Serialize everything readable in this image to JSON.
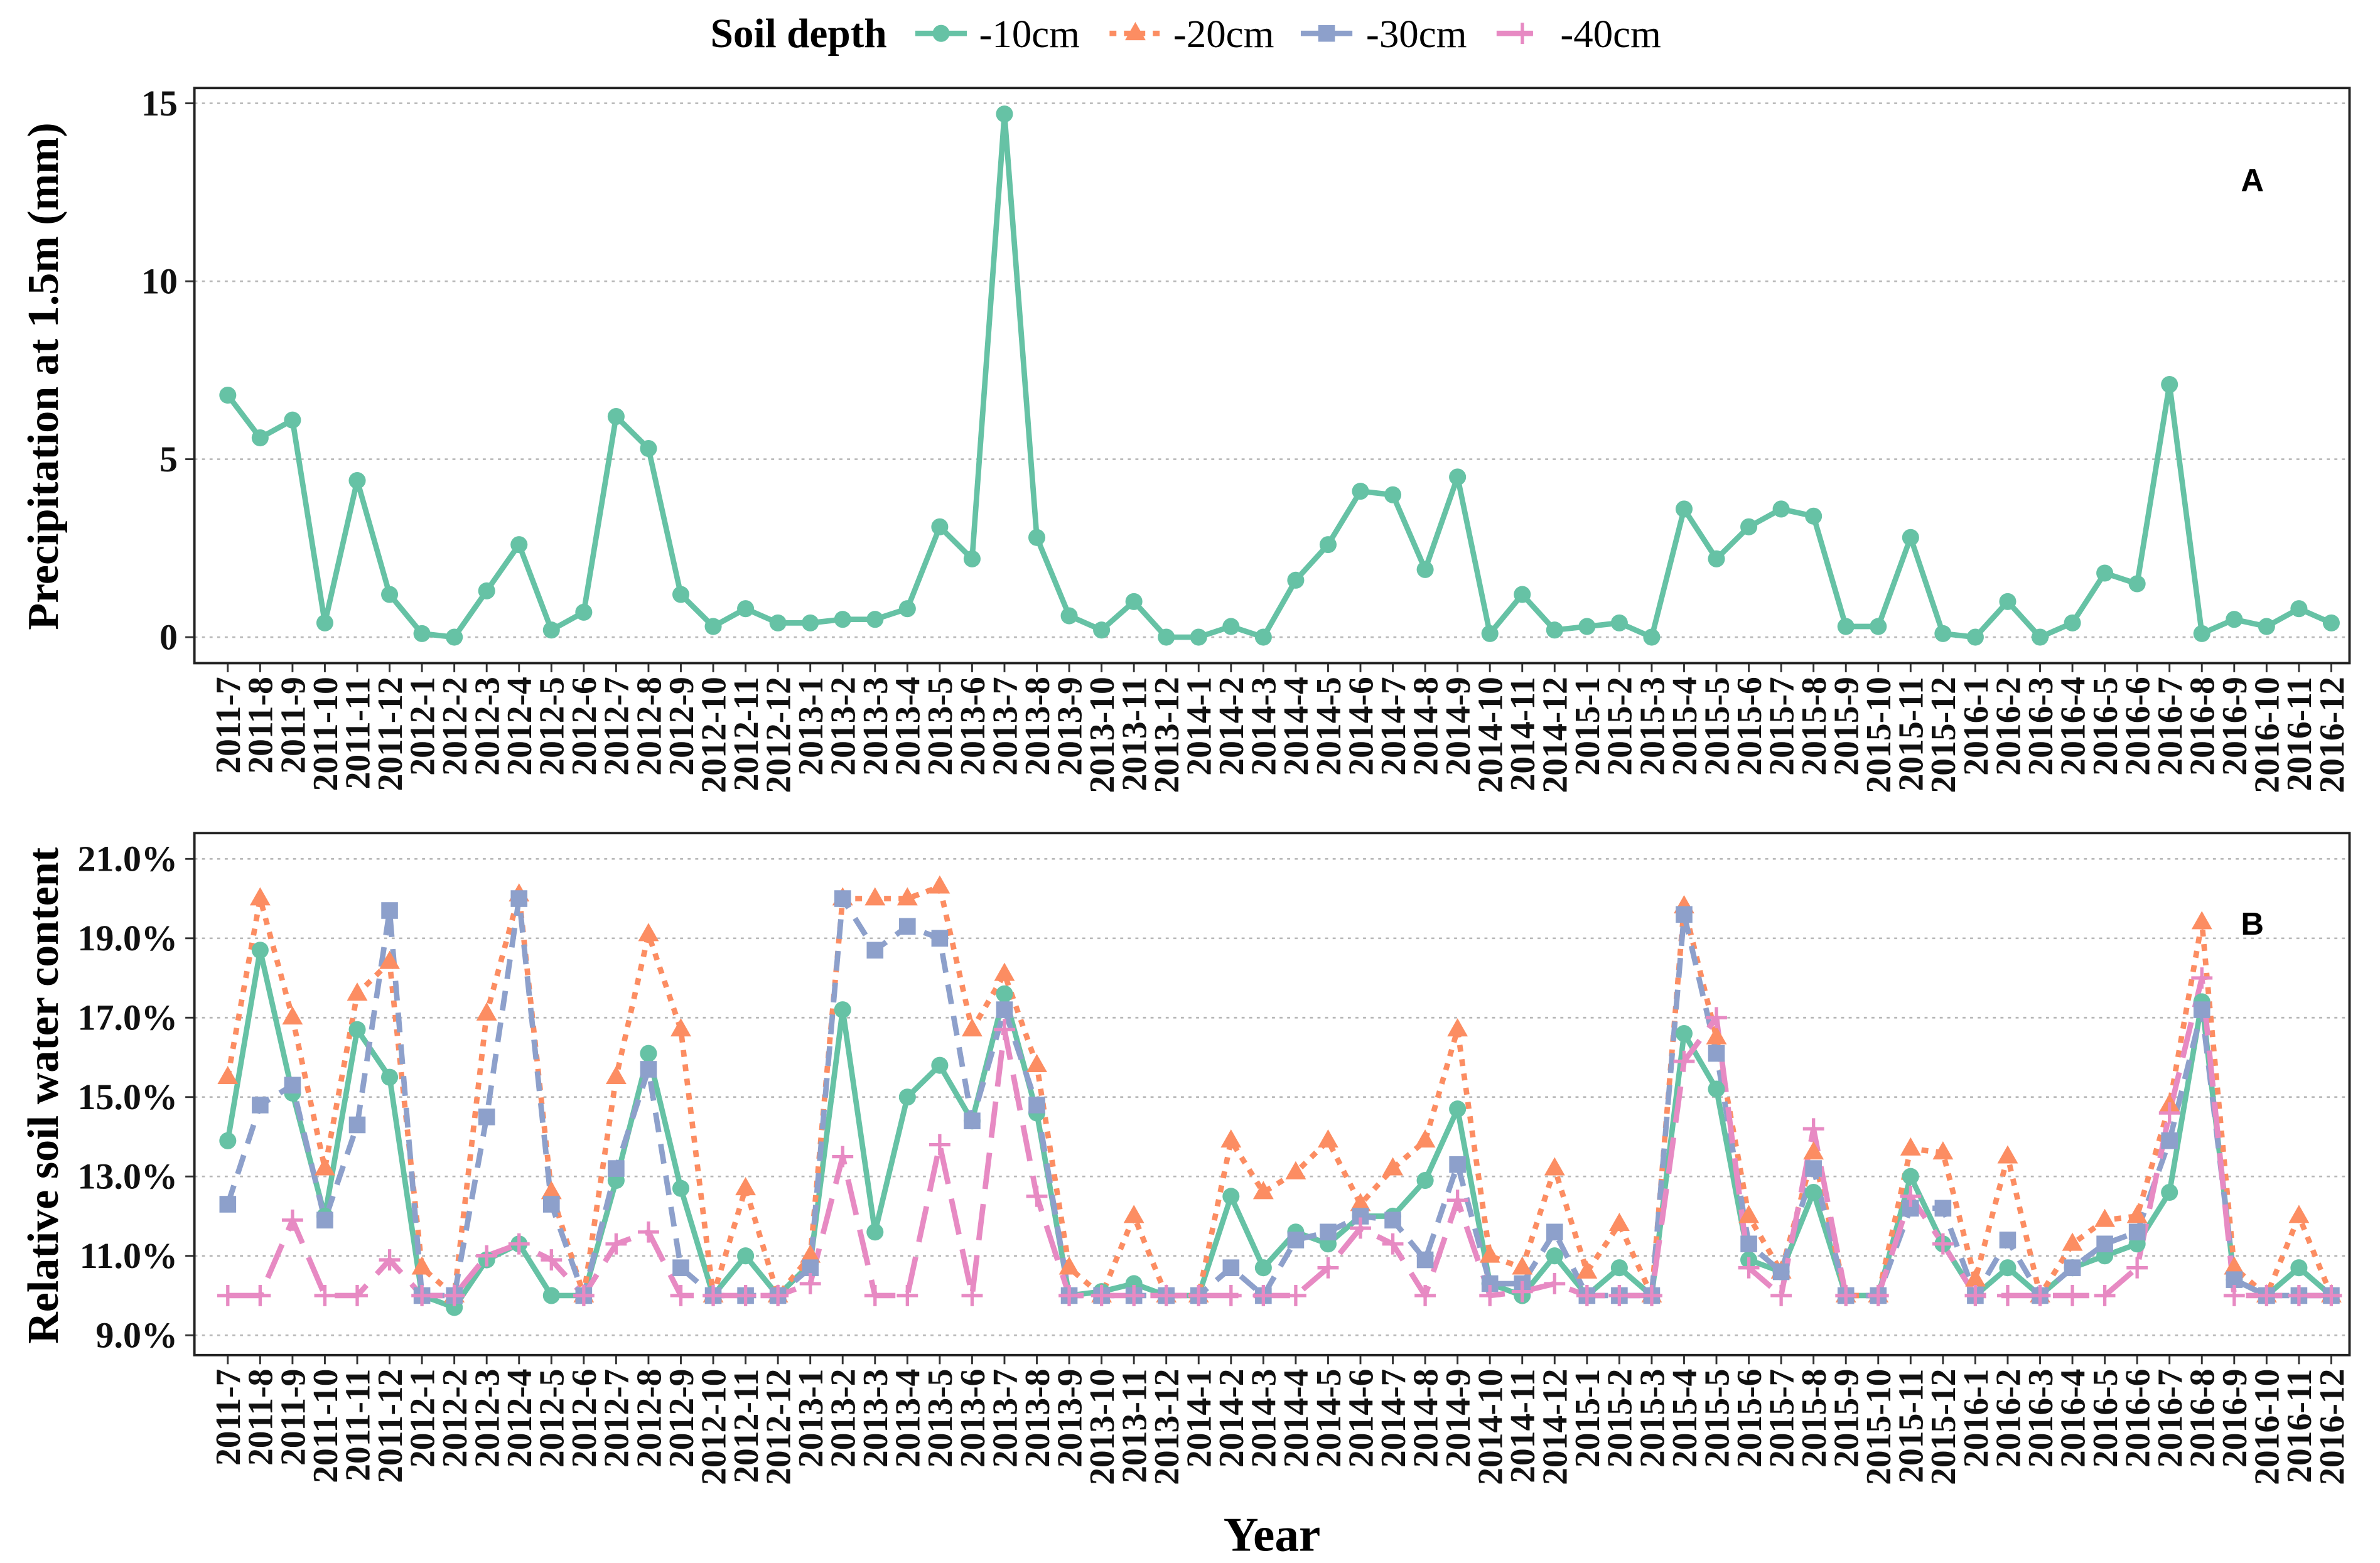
{
  "legend": {
    "title": "Soil depth",
    "position": "top"
  },
  "chart_data": [
    {
      "type": "line",
      "panel_label": "A",
      "ylabel": "Precipitation at 1.5m (mm)",
      "ylim": [
        -0.73,
        15.43
      ],
      "yticks": [
        0,
        5,
        10,
        15
      ],
      "ytick_labels": [
        "0",
        "5",
        "10",
        "15"
      ],
      "grid": true,
      "categories": [
        "2011-7",
        "2011-8",
        "2011-9",
        "2011-10",
        "2011-11",
        "2011-12",
        "2012-1",
        "2012-2",
        "2012-3",
        "2012-4",
        "2012-5",
        "2012-6",
        "2012-7",
        "2012-8",
        "2012-9",
        "2012-10",
        "2012-11",
        "2012-12",
        "2013-1",
        "2013-2",
        "2013-3",
        "2013-4",
        "2013-5",
        "2013-6",
        "2013-7",
        "2013-8",
        "2013-9",
        "2013-10",
        "2013-11",
        "2013-12",
        "2014-1",
        "2014-2",
        "2014-3",
        "2014-4",
        "2014-5",
        "2014-6",
        "2014-7",
        "2014-8",
        "2014-9",
        "2014-10",
        "2014-11",
        "2014-12",
        "2015-1",
        "2015-2",
        "2015-3",
        "2015-4",
        "2015-5",
        "2015-6",
        "2015-7",
        "2015-8",
        "2015-9",
        "2015-10",
        "2015-11",
        "2015-12",
        "2016-1",
        "2016-2",
        "2016-3",
        "2016-4",
        "2016-5",
        "2016-6",
        "2016-7",
        "2016-8",
        "2016-9",
        "2016-10",
        "2016-11",
        "2016-12"
      ],
      "series": [
        {
          "color": "#66C2A5",
          "marker": "circle",
          "line": "solid",
          "values": [
            6.8,
            5.6,
            6.1,
            0.4,
            4.4,
            1.2,
            0.1,
            0.0,
            1.3,
            2.6,
            0.2,
            0.7,
            6.2,
            5.3,
            1.2,
            0.3,
            0.8,
            0.4,
            0.4,
            0.5,
            0.5,
            0.8,
            3.1,
            2.2,
            14.7,
            2.8,
            0.6,
            0.2,
            1.0,
            0.0,
            0.0,
            0.3,
            0.0,
            1.6,
            2.6,
            4.1,
            4.0,
            1.9,
            4.5,
            0.1,
            1.2,
            0.2,
            0.3,
            0.4,
            0.0,
            3.6,
            2.2,
            3.1,
            3.6,
            3.4,
            0.3,
            0.3,
            2.8,
            0.1,
            0.0,
            1.0,
            0.0,
            0.4,
            1.8,
            1.5,
            7.1,
            0.1,
            0.5,
            0.3,
            0.8,
            0.4
          ]
        }
      ]
    },
    {
      "type": "line",
      "panel_label": "B",
      "ylabel": "Relative soil water content",
      "xlabel": "Year",
      "ylim": [
        8.5,
        21.65
      ],
      "yticks": [
        9,
        11,
        13,
        15,
        17,
        19,
        21
      ],
      "ytick_labels": [
        "9.0%",
        "11.0%",
        "13.0%",
        "15.0%",
        "17.0%",
        "19.0%",
        "21.0%"
      ],
      "grid": true,
      "categories": [
        "2011-7",
        "2011-8",
        "2011-9",
        "2011-10",
        "2011-11",
        "2011-12",
        "2012-1",
        "2012-2",
        "2012-3",
        "2012-4",
        "2012-5",
        "2012-6",
        "2012-7",
        "2012-8",
        "2012-9",
        "2012-10",
        "2012-11",
        "2012-12",
        "2013-1",
        "2013-2",
        "2013-3",
        "2013-4",
        "2013-5",
        "2013-6",
        "2013-7",
        "2013-8",
        "2013-9",
        "2013-10",
        "2013-11",
        "2013-12",
        "2014-1",
        "2014-2",
        "2014-3",
        "2014-4",
        "2014-5",
        "2014-6",
        "2014-7",
        "2014-8",
        "2014-9",
        "2014-10",
        "2014-11",
        "2014-12",
        "2015-1",
        "2015-2",
        "2015-3",
        "2015-4",
        "2015-5",
        "2015-6",
        "2015-7",
        "2015-8",
        "2015-9",
        "2015-10",
        "2015-11",
        "2015-12",
        "2016-1",
        "2016-2",
        "2016-3",
        "2016-4",
        "2016-5",
        "2016-6",
        "2016-7",
        "2016-8",
        "2016-9",
        "2016-10",
        "2016-11",
        "2016-12"
      ],
      "series": [
        {
          "name": "-10cm",
          "color": "#66C2A5",
          "marker": "circle",
          "line": "solid",
          "values": [
            13.9,
            18.7,
            15.1,
            12.0,
            16.7,
            15.5,
            10.0,
            9.7,
            10.9,
            11.3,
            10.0,
            10.0,
            12.9,
            16.1,
            12.7,
            10.0,
            11.0,
            10.0,
            10.8,
            17.2,
            11.6,
            15.0,
            15.8,
            14.4,
            17.6,
            14.6,
            10.0,
            10.1,
            10.3,
            10.0,
            10.0,
            12.5,
            10.7,
            11.6,
            11.3,
            12.0,
            12.0,
            12.9,
            14.7,
            10.3,
            10.0,
            11.0,
            10.0,
            10.7,
            10.0,
            16.6,
            15.2,
            10.9,
            10.6,
            12.6,
            10.0,
            10.0,
            13.0,
            11.3,
            10.0,
            10.7,
            10.0,
            10.7,
            11.0,
            11.3,
            12.6,
            17.4,
            10.4,
            10.0,
            10.7,
            10.0
          ]
        },
        {
          "name": "-20cm",
          "color": "#FC8D62",
          "marker": "triangle",
          "line": "dotted",
          "values": [
            15.5,
            20.0,
            17.0,
            13.2,
            17.6,
            18.4,
            10.7,
            10.0,
            17.1,
            20.1,
            12.6,
            10.0,
            15.5,
            19.1,
            16.7,
            10.0,
            12.7,
            10.0,
            11.0,
            20.0,
            20.0,
            20.0,
            20.3,
            16.7,
            18.1,
            15.8,
            10.7,
            10.0,
            12.0,
            10.0,
            10.0,
            13.9,
            12.6,
            13.1,
            13.9,
            12.3,
            13.2,
            13.9,
            16.7,
            11.0,
            10.7,
            13.2,
            10.6,
            11.8,
            10.0,
            19.8,
            16.5,
            12.0,
            10.6,
            13.6,
            10.0,
            10.0,
            13.7,
            13.6,
            10.4,
            13.5,
            10.0,
            11.3,
            11.9,
            12.0,
            14.8,
            19.4,
            10.7,
            10.0,
            12.0,
            10.0
          ]
        },
        {
          "name": "-30cm",
          "color": "#8DA0CB",
          "marker": "square",
          "line": "dashed",
          "values": [
            12.3,
            14.8,
            15.3,
            11.9,
            14.3,
            19.7,
            10.0,
            10.0,
            14.5,
            20.0,
            12.3,
            10.0,
            13.2,
            15.7,
            10.7,
            10.0,
            10.0,
            10.0,
            10.7,
            20.0,
            18.7,
            19.3,
            19.0,
            14.4,
            17.2,
            14.8,
            10.0,
            10.0,
            10.0,
            10.0,
            10.0,
            10.7,
            10.0,
            11.4,
            11.6,
            12.0,
            11.9,
            10.9,
            13.3,
            10.3,
            10.3,
            11.6,
            10.0,
            10.0,
            10.0,
            19.6,
            16.1,
            11.3,
            10.6,
            13.2,
            10.0,
            10.0,
            12.2,
            12.2,
            10.0,
            11.4,
            10.0,
            10.7,
            11.3,
            11.6,
            13.9,
            17.2,
            10.4,
            10.0,
            10.0,
            10.0
          ]
        },
        {
          "name": "-40cm",
          "color": "#E78AC3",
          "marker": "plus",
          "line": "longdash",
          "values": [
            10.0,
            10.0,
            11.9,
            10.0,
            10.0,
            10.9,
            10.0,
            10.0,
            11.0,
            11.3,
            10.9,
            10.0,
            11.3,
            11.6,
            10.0,
            10.0,
            10.0,
            10.0,
            10.3,
            13.5,
            10.0,
            10.0,
            13.8,
            10.0,
            16.7,
            12.5,
            10.0,
            10.0,
            10.0,
            10.0,
            10.0,
            10.0,
            10.0,
            10.0,
            10.7,
            11.7,
            11.3,
            10.0,
            12.4,
            10.0,
            10.1,
            10.3,
            10.0,
            10.0,
            10.0,
            15.9,
            17.0,
            10.7,
            10.0,
            14.2,
            10.0,
            10.0,
            12.5,
            11.3,
            10.0,
            10.0,
            10.0,
            10.0,
            10.0,
            10.7,
            14.6,
            18.0,
            10.0,
            10.0,
            10.0,
            10.0
          ]
        }
      ]
    }
  ]
}
